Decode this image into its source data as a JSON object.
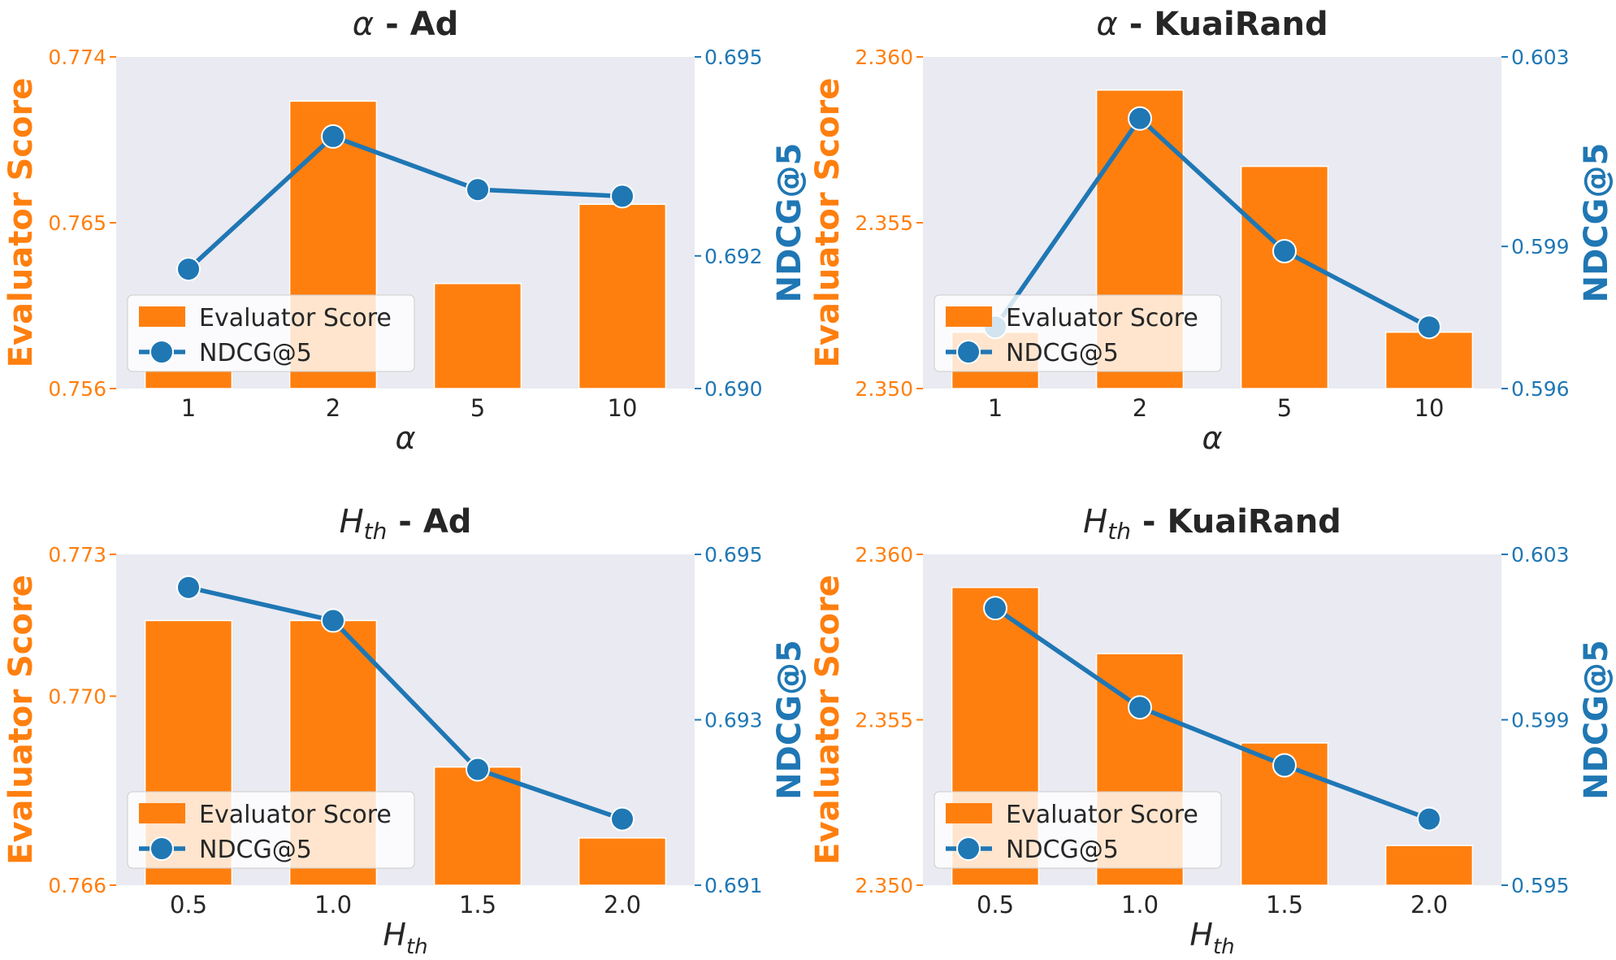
{
  "colors": {
    "bar": "#ff7f0e",
    "line": "#1f77b4",
    "plot_bg": "#eaeaf2",
    "text": "#262626"
  },
  "legend_labels": {
    "bar": "Evaluator Score",
    "line": "NDCG@5"
  },
  "chart_data": [
    {
      "type": "bar+line",
      "title_symbol": "α",
      "title_sub": "",
      "title_rest": " - Ad",
      "xlabel_symbol": "α",
      "xlabel_sub": "",
      "categories": [
        "1",
        "2",
        "5",
        "10"
      ],
      "series": [
        {
          "name": "Evaluator Score",
          "axis": "left",
          "kind": "bar",
          "values": [
            0.757,
            0.7716,
            0.7617,
            0.766
          ]
        },
        {
          "name": "NDCG@5",
          "axis": "right",
          "kind": "line",
          "values": [
            0.6918,
            0.6938,
            0.693,
            0.6929
          ]
        }
      ],
      "ylabel_left": "Evaluator Score",
      "ylabel_right": "NDCG@5",
      "ylim_left": [
        0.756,
        0.774
      ],
      "ylim_right": [
        0.69,
        0.695
      ],
      "yticks_left": [
        "0.756",
        "0.765",
        "0.774"
      ],
      "yticks_right": [
        "0.690",
        "0.692",
        "0.695"
      ],
      "legend": "lower-left"
    },
    {
      "type": "bar+line",
      "title_symbol": "α",
      "title_sub": "",
      "title_rest": " - KuaiRand",
      "xlabel_symbol": "α",
      "xlabel_sub": "",
      "categories": [
        "1",
        "2",
        "5",
        "10"
      ],
      "series": [
        {
          "name": "Evaluator Score",
          "axis": "left",
          "kind": "bar",
          "values": [
            2.3517,
            2.359,
            2.3567,
            2.3517
          ]
        },
        {
          "name": "NDCG@5",
          "axis": "right",
          "kind": "line",
          "values": [
            0.5973,
            0.6017,
            0.5989,
            0.5973
          ]
        }
      ],
      "ylabel_left": "Evaluator Score",
      "ylabel_right": "NDCG@5",
      "ylim_left": [
        2.35,
        2.36
      ],
      "ylim_right": [
        0.596,
        0.603
      ],
      "yticks_left": [
        "2.350",
        "2.355",
        "2.360"
      ],
      "yticks_right": [
        "0.596",
        "0.599",
        "0.603"
      ],
      "legend": "lower-left"
    },
    {
      "type": "bar+line",
      "title_symbol": "H",
      "title_sub": "th",
      "title_rest": " - Ad",
      "xlabel_symbol": "H",
      "xlabel_sub": "th",
      "categories": [
        "0.5",
        "1.0",
        "1.5",
        "2.0"
      ],
      "series": [
        {
          "name": "Evaluator Score",
          "axis": "left",
          "kind": "bar",
          "values": [
            0.7716,
            0.7716,
            0.7685,
            0.767
          ]
        },
        {
          "name": "NDCG@5",
          "axis": "right",
          "kind": "line",
          "values": [
            0.6946,
            0.6942,
            0.6924,
            0.6918
          ]
        }
      ],
      "ylabel_left": "Evaluator Score",
      "ylabel_right": "NDCG@5",
      "ylim_left": [
        0.766,
        0.773
      ],
      "ylim_right": [
        0.691,
        0.695
      ],
      "yticks_left": [
        "0.766",
        "0.770",
        "0.773"
      ],
      "yticks_right": [
        "0.691",
        "0.693",
        "0.695"
      ],
      "legend": "lower-left"
    },
    {
      "type": "bar+line",
      "title_symbol": "H",
      "title_sub": "th",
      "title_rest": " - KuaiRand",
      "xlabel_symbol": "H",
      "xlabel_sub": "th",
      "categories": [
        "0.5",
        "1.0",
        "1.5",
        "2.0"
      ],
      "series": [
        {
          "name": "Evaluator Score",
          "axis": "left",
          "kind": "bar",
          "values": [
            2.359,
            2.357,
            2.3543,
            2.3512
          ]
        },
        {
          "name": "NDCG@5",
          "axis": "right",
          "kind": "line",
          "values": [
            0.6017,
            0.5993,
            0.5979,
            0.5966
          ]
        }
      ],
      "ylabel_left": "Evaluator Score",
      "ylabel_right": "NDCG@5",
      "ylim_left": [
        2.35,
        2.36
      ],
      "ylim_right": [
        0.595,
        0.603
      ],
      "yticks_left": [
        "2.350",
        "2.355",
        "2.360"
      ],
      "yticks_right": [
        "0.595",
        "0.599",
        "0.603"
      ],
      "legend": "lower-left"
    }
  ]
}
